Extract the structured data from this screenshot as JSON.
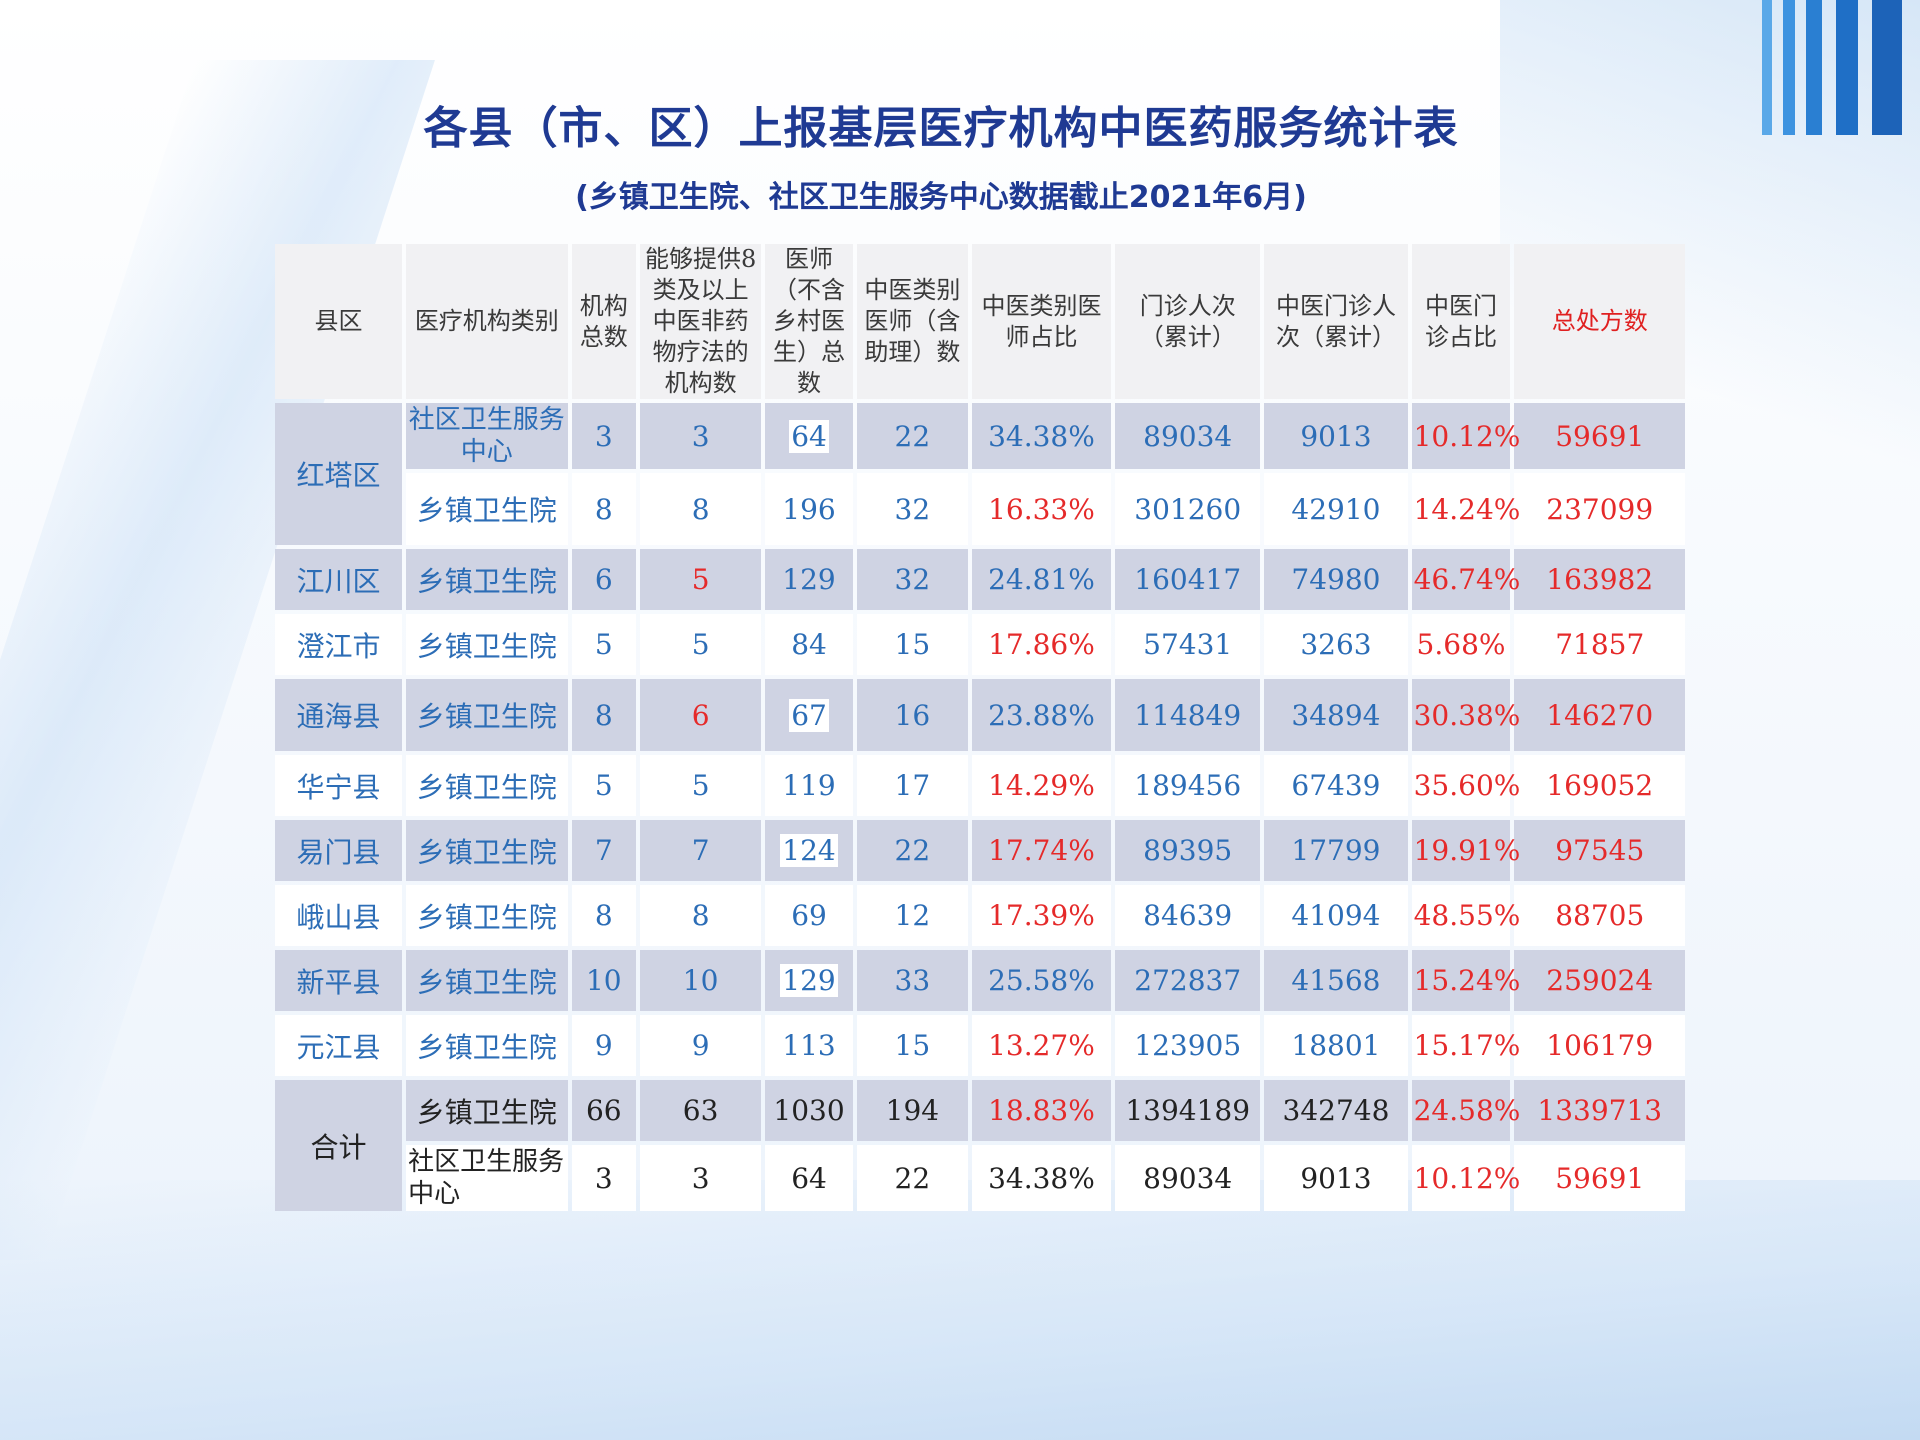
{
  "title": "各县（市、区）上报基层医疗机构中医药服务统计表",
  "subtitle": "(乡镇卫生院、社区卫生服务中心数据截止2021年6月)",
  "table": {
    "headers": [
      "县区",
      "医疗机构类别",
      "机构总数",
      "能够提供8类及以上中医非药物疗法的机构数",
      "医师（不含乡村医生）总数",
      "中医类别医师（含助理）数",
      "中医类别医师占比",
      "门诊人次（累计）",
      "中医门诊人次（累计）",
      "中医门诊占比",
      "总处方数"
    ],
    "rows": [
      {
        "region": "红塔区",
        "type": "社区卫生服务中心",
        "total": "3",
        "tcm8": "3",
        "doctors": "64",
        "tcm_doctors": "22",
        "tcm_ratio": "34.38%",
        "visits": "89034",
        "tcm_visits": "9013",
        "tcm_visit_ratio": "10.12%",
        "prescriptions": "59691"
      },
      {
        "region": "",
        "type": "乡镇卫生院",
        "total": "8",
        "tcm8": "8",
        "doctors": "196",
        "tcm_doctors": "32",
        "tcm_ratio": "16.33%",
        "visits": "301260",
        "tcm_visits": "42910",
        "tcm_visit_ratio": "14.24%",
        "prescriptions": "237099"
      },
      {
        "region": "江川区",
        "type": "乡镇卫生院",
        "total": "6",
        "tcm8": "5",
        "doctors": "129",
        "tcm_doctors": "32",
        "tcm_ratio": "24.81%",
        "visits": "160417",
        "tcm_visits": "74980",
        "tcm_visit_ratio": "46.74%",
        "prescriptions": "163982"
      },
      {
        "region": "澄江市",
        "type": "乡镇卫生院",
        "total": "5",
        "tcm8": "5",
        "doctors": "84",
        "tcm_doctors": "15",
        "tcm_ratio": "17.86%",
        "visits": "57431",
        "tcm_visits": "3263",
        "tcm_visit_ratio": "5.68%",
        "prescriptions": "71857"
      },
      {
        "region": "通海县",
        "type": "乡镇卫生院",
        "total": "8",
        "tcm8": "6",
        "doctors": "67",
        "tcm_doctors": "16",
        "tcm_ratio": "23.88%",
        "visits": "114849",
        "tcm_visits": "34894",
        "tcm_visit_ratio": "30.38%",
        "prescriptions": "146270"
      },
      {
        "region": "华宁县",
        "type": "乡镇卫生院",
        "total": "5",
        "tcm8": "5",
        "doctors": "119",
        "tcm_doctors": "17",
        "tcm_ratio": "14.29%",
        "visits": "189456",
        "tcm_visits": "67439",
        "tcm_visit_ratio": "35.60%",
        "prescriptions": "169052"
      },
      {
        "region": "易门县",
        "type": "乡镇卫生院",
        "total": "7",
        "tcm8": "7",
        "doctors": "124",
        "tcm_doctors": "22",
        "tcm_ratio": "17.74%",
        "visits": "89395",
        "tcm_visits": "17799",
        "tcm_visit_ratio": "19.91%",
        "prescriptions": "97545"
      },
      {
        "region": "峨山县",
        "type": "乡镇卫生院",
        "total": "8",
        "tcm8": "8",
        "doctors": "69",
        "tcm_doctors": "12",
        "tcm_ratio": "17.39%",
        "visits": "84639",
        "tcm_visits": "41094",
        "tcm_visit_ratio": "48.55%",
        "prescriptions": "88705"
      },
      {
        "region": "新平县",
        "type": "乡镇卫生院",
        "total": "10",
        "tcm8": "10",
        "doctors": "129",
        "tcm_doctors": "33",
        "tcm_ratio": "25.58%",
        "visits": "272837",
        "tcm_visits": "41568",
        "tcm_visit_ratio": "15.24%",
        "prescriptions": "259024"
      },
      {
        "region": "元江县",
        "type": "乡镇卫生院",
        "total": "9",
        "tcm8": "9",
        "doctors": "113",
        "tcm_doctors": "15",
        "tcm_ratio": "13.27%",
        "visits": "123905",
        "tcm_visits": "18801",
        "tcm_visit_ratio": "15.17%",
        "prescriptions": "106179"
      },
      {
        "region": "合计",
        "type": "乡镇卫生院",
        "total": "66",
        "tcm8": "63",
        "doctors": "1030",
        "tcm_doctors": "194",
        "tcm_ratio": "18.83%",
        "visits": "1394189",
        "tcm_visits": "342748",
        "tcm_visit_ratio": "24.58%",
        "prescriptions": "1339713"
      },
      {
        "region": "",
        "type": "社区卫生服务中心",
        "total": "3",
        "tcm8": "3",
        "doctors": "64",
        "tcm_doctors": "22",
        "tcm_ratio": "34.38%",
        "visits": "89034",
        "tcm_visits": "9013",
        "tcm_visit_ratio": "10.12%",
        "prescriptions": "59691"
      }
    ]
  },
  "colors": {
    "title": "#1f3a93",
    "cell_text": "#2c6db6",
    "highlight_red": "#e52a2a",
    "row_band": "#cfd3e3",
    "header_bg": "#f1f1f3"
  }
}
